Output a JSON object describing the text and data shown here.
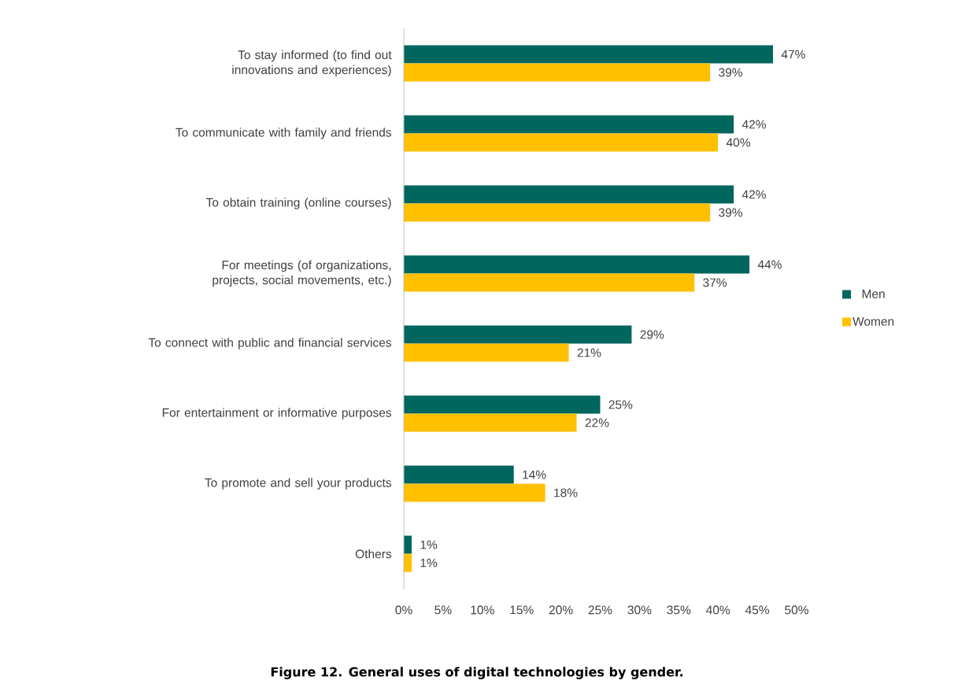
{
  "chart_data": {
    "type": "bar",
    "orientation": "horizontal",
    "title": "Figure 12. General uses of digital technologies by gender.",
    "categories": [
      "To stay informed (to find out innovations and experiences)",
      "To communicate with family and friends",
      "To obtain training (online courses)",
      "For meetings (of organizations, projects, social movements, etc.)",
      "To connect with public and financial services",
      "For entertainment or informative purposes",
      "To promote and sell your products",
      "Others"
    ],
    "series": [
      {
        "name": "Men",
        "color": "#00665e",
        "values": [
          47,
          42,
          42,
          44,
          29,
          25,
          14,
          1
        ],
        "value_labels": [
          "47%",
          "42%",
          "42%",
          "44%",
          "29%",
          "25%",
          "14%",
          "1%"
        ]
      },
      {
        "name": "Women",
        "color": "#ffc000",
        "values": [
          39,
          40,
          39,
          37,
          21,
          22,
          18,
          1
        ],
        "value_labels": [
          "39%",
          "40%",
          "39%",
          "37%",
          "21%",
          "22%",
          "18%",
          "1%"
        ]
      }
    ],
    "xlim": [
      0,
      50
    ],
    "xticks": [
      {
        "value": 0,
        "label": "0%"
      },
      {
        "value": 5,
        "label": "5%"
      },
      {
        "value": 10,
        "label": "10%"
      },
      {
        "value": 15,
        "label": "15%"
      },
      {
        "value": 20,
        "label": "20%"
      },
      {
        "value": 25,
        "label": "25%"
      },
      {
        "value": 30,
        "label": "30%"
      },
      {
        "value": 35,
        "label": "35%"
      },
      {
        "value": 40,
        "label": "40%"
      },
      {
        "value": 45,
        "label": "45%"
      },
      {
        "value": 50,
        "label": "50%"
      }
    ],
    "legend": "right"
  }
}
